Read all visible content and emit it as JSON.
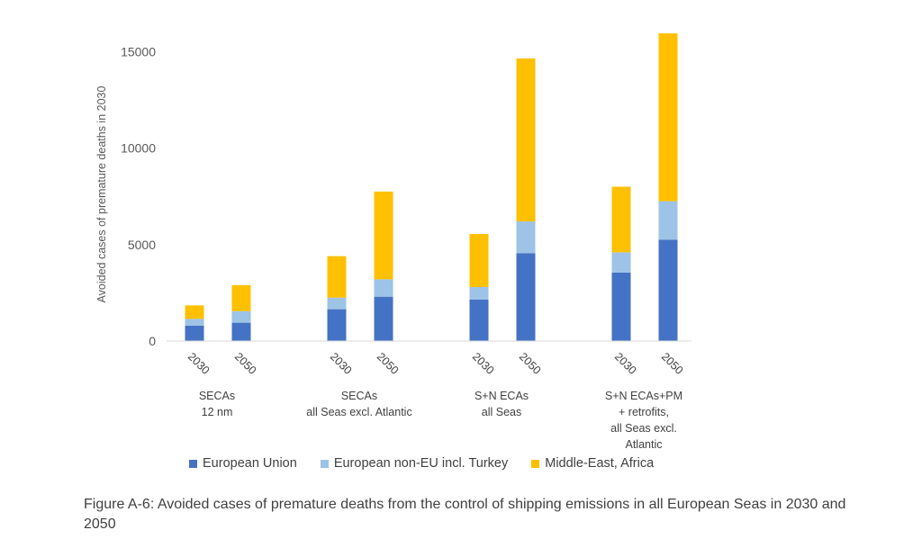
{
  "chart_data": {
    "type": "bar",
    "stacked": true,
    "ylabel": "Avoided cases of premature deaths in 2030",
    "xlabel": "",
    "ylim": [
      0,
      16000
    ],
    "yticks": [
      "0",
      "5000",
      "10000",
      "15000"
    ],
    "grid": false,
    "legend_position": "bottom",
    "groups": [
      {
        "label": [
          "SECAs",
          "12 nm"
        ],
        "years": [
          "2030",
          "2050"
        ]
      },
      {
        "label": [
          "SECAs",
          "all Seas excl. Atlantic"
        ],
        "years": [
          "2030",
          "2050"
        ]
      },
      {
        "label": [
          "S+N ECAs",
          "all Seas"
        ],
        "years": [
          "2030",
          "2050"
        ]
      },
      {
        "label": [
          "S+N ECAs+PM",
          "+ retrofits,",
          "all Seas excl.",
          "Atlantic"
        ],
        "years": [
          "2030",
          "2050"
        ]
      }
    ],
    "series": [
      {
        "name": "European Union",
        "color": "#4472C4",
        "values": [
          800,
          950,
          1650,
          2300,
          2150,
          4550,
          3550,
          5250
        ]
      },
      {
        "name": "European non-EU incl. Turkey",
        "color": "#9DC3E6",
        "values": [
          350,
          600,
          600,
          900,
          650,
          1650,
          1050,
          2000
        ]
      },
      {
        "name": "Middle-East, Africa",
        "color": "#FFC000",
        "values": [
          700,
          1350,
          2150,
          4550,
          2750,
          8450,
          3400,
          8700
        ]
      }
    ]
  },
  "caption": "Figure A-6: Avoided cases of premature deaths from the control of shipping emissions in all European Seas in 2030 and 2050"
}
